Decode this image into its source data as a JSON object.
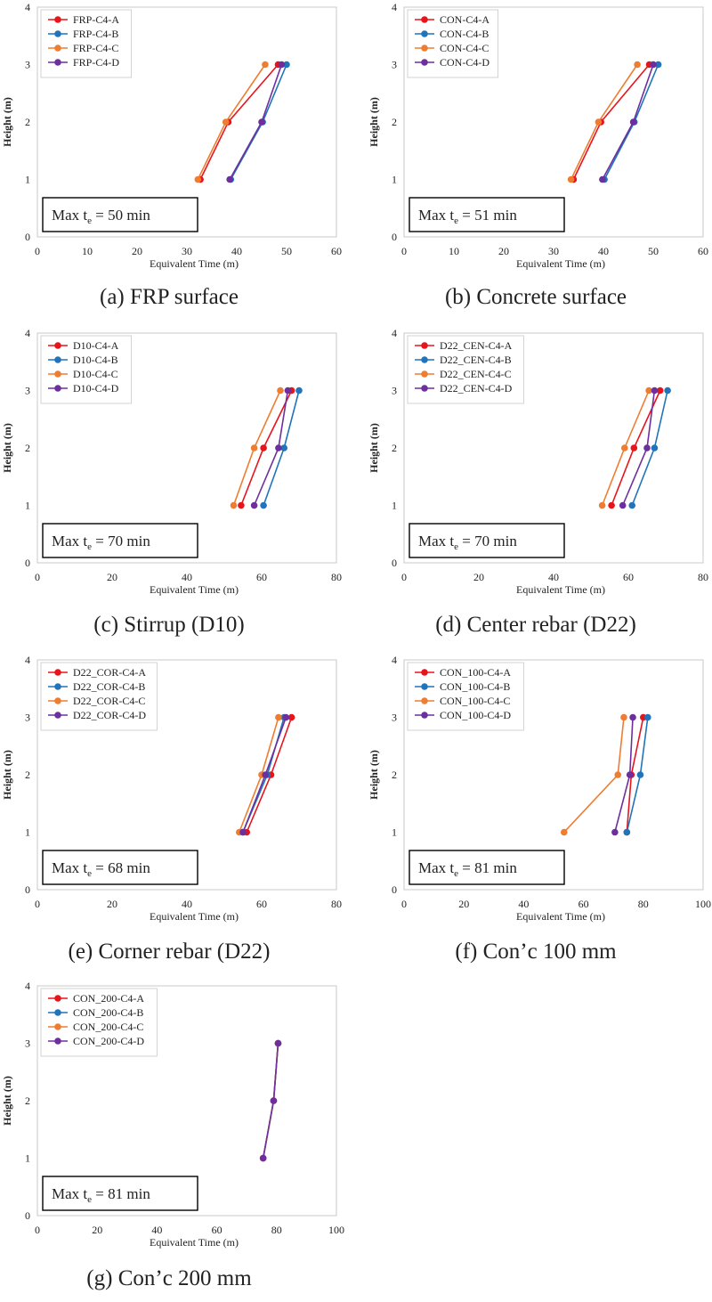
{
  "figure": {
    "series_colors": [
      "#e8141c",
      "#1f74bb",
      "#ee7d31",
      "#6e2f9e"
    ],
    "frame_color": "#c8c8c8"
  },
  "chart_data": [
    {
      "type": "line",
      "panel": "a",
      "caption": "(a) FRP surface",
      "xlabel": "Equivalent Time (m)",
      "ylabel": "Height (m)",
      "xlim": [
        0,
        60
      ],
      "xticks": [
        0,
        10,
        20,
        30,
        40,
        50,
        60
      ],
      "ylim": [
        0,
        4
      ],
      "yticks": [
        0,
        1,
        2,
        3,
        4
      ],
      "annotation": {
        "prefix": "Max t",
        "subscript": "e",
        "suffix": " = 50 min"
      },
      "legend_position": "top-left",
      "series": [
        {
          "name": "FRP-C4-A",
          "x": [
            32.7,
            38.3,
            48.3
          ],
          "y": [
            1,
            2,
            3
          ]
        },
        {
          "name": "FRP-C4-B",
          "x": [
            38.8,
            45.2,
            50.0
          ],
          "y": [
            1,
            2,
            3
          ]
        },
        {
          "name": "FRP-C4-C",
          "x": [
            32.2,
            37.8,
            45.7
          ],
          "y": [
            1,
            2,
            3
          ]
        },
        {
          "name": "FRP-C4-D",
          "x": [
            38.6,
            45.0,
            49.0
          ],
          "y": [
            1,
            2,
            3
          ]
        }
      ]
    },
    {
      "type": "line",
      "panel": "b",
      "caption": "(b) Concrete surface",
      "xlabel": "Equivalent Time (m)",
      "ylabel": "Height (m)",
      "xlim": [
        0,
        60
      ],
      "xticks": [
        0,
        10,
        20,
        30,
        40,
        50,
        60
      ],
      "ylim": [
        0,
        4
      ],
      "yticks": [
        0,
        1,
        2,
        3,
        4
      ],
      "annotation": {
        "prefix": "Max t",
        "subscript": "e",
        "suffix": " = 51 min"
      },
      "legend_position": "top-left",
      "series": [
        {
          "name": "CON-C4-A",
          "x": [
            34.0,
            39.5,
            49.2
          ],
          "y": [
            1,
            2,
            3
          ]
        },
        {
          "name": "CON-C4-B",
          "x": [
            40.2,
            46.2,
            51.0
          ],
          "y": [
            1,
            2,
            3
          ]
        },
        {
          "name": "CON-C4-C",
          "x": [
            33.5,
            39.0,
            46.8
          ],
          "y": [
            1,
            2,
            3
          ]
        },
        {
          "name": "CON-C4-D",
          "x": [
            39.8,
            46.0,
            50.0
          ],
          "y": [
            1,
            2,
            3
          ]
        }
      ]
    },
    {
      "type": "line",
      "panel": "c",
      "caption": "(c) Stirrup (D10)",
      "xlabel": "Equivalent Time (m)",
      "ylabel": "Height (m)",
      "xlim": [
        0,
        80
      ],
      "xticks": [
        0,
        20,
        40,
        60,
        80
      ],
      "ylim": [
        0,
        4
      ],
      "yticks": [
        0,
        1,
        2,
        3,
        4
      ],
      "annotation": {
        "prefix": "Max t",
        "subscript": "e",
        "suffix": " = 70 min"
      },
      "legend_position": "top-left",
      "series": [
        {
          "name": "D10-C4-A",
          "x": [
            54.5,
            60.5,
            68.0
          ],
          "y": [
            1,
            2,
            3
          ]
        },
        {
          "name": "D10-C4-B",
          "x": [
            60.5,
            66.0,
            70.0
          ],
          "y": [
            1,
            2,
            3
          ]
        },
        {
          "name": "D10-C4-C",
          "x": [
            52.5,
            58.0,
            65.0
          ],
          "y": [
            1,
            2,
            3
          ]
        },
        {
          "name": "D10-C4-D",
          "x": [
            58.0,
            64.5,
            67.0
          ],
          "y": [
            1,
            2,
            3
          ]
        }
      ]
    },
    {
      "type": "line",
      "panel": "d",
      "caption": "(d) Center rebar (D22)",
      "xlabel": "Equivalent Time (m)",
      "ylabel": "Height (m)",
      "xlim": [
        0,
        80
      ],
      "xticks": [
        0,
        20,
        40,
        60,
        80
      ],
      "ylim": [
        0,
        4
      ],
      "yticks": [
        0,
        1,
        2,
        3,
        4
      ],
      "annotation": {
        "prefix": "Max t",
        "subscript": "e",
        "suffix": " = 70 min"
      },
      "legend_position": "top-left",
      "series": [
        {
          "name": "D22_CEN-C4-A",
          "x": [
            55.5,
            61.5,
            68.5
          ],
          "y": [
            1,
            2,
            3
          ]
        },
        {
          "name": "D22_CEN-C4-B",
          "x": [
            61.0,
            67.0,
            70.5
          ],
          "y": [
            1,
            2,
            3
          ]
        },
        {
          "name": "D22_CEN-C4-C",
          "x": [
            53.0,
            59.0,
            65.5
          ],
          "y": [
            1,
            2,
            3
          ]
        },
        {
          "name": "D22_CEN-C4-D",
          "x": [
            58.5,
            65.0,
            67.0
          ],
          "y": [
            1,
            2,
            3
          ]
        }
      ]
    },
    {
      "type": "line",
      "panel": "e",
      "caption": "(e) Corner rebar (D22)",
      "xlabel": "Equivalent Time (m)",
      "ylabel": "Height (m)",
      "xlim": [
        0,
        80
      ],
      "xticks": [
        0,
        20,
        40,
        60,
        80
      ],
      "ylim": [
        0,
        4
      ],
      "yticks": [
        0,
        1,
        2,
        3,
        4
      ],
      "annotation": {
        "prefix": "Max t",
        "subscript": "e",
        "suffix": " = 68 min"
      },
      "legend_position": "top-left",
      "series": [
        {
          "name": "D22_COR-C4-A",
          "x": [
            56.0,
            62.5,
            68.0
          ],
          "y": [
            1,
            2,
            3
          ]
        },
        {
          "name": "D22_COR-C4-B",
          "x": [
            55.0,
            61.5,
            66.0
          ],
          "y": [
            1,
            2,
            3
          ]
        },
        {
          "name": "D22_COR-C4-C",
          "x": [
            54.0,
            60.0,
            64.5
          ],
          "y": [
            1,
            2,
            3
          ]
        },
        {
          "name": "D22_COR-C4-D",
          "x": [
            55.0,
            61.0,
            66.5
          ],
          "y": [
            1,
            2,
            3
          ]
        }
      ]
    },
    {
      "type": "line",
      "panel": "f",
      "caption": "(f) Con’c 100 mm",
      "xlabel": "Equivalent Time (m)",
      "ylabel": "Height (m)",
      "xlim": [
        0,
        100
      ],
      "xticks": [
        0,
        20,
        40,
        60,
        80,
        100
      ],
      "ylim": [
        0,
        4
      ],
      "yticks": [
        0,
        1,
        2,
        3,
        4
      ],
      "annotation": {
        "prefix": "Max t",
        "subscript": "e",
        "suffix": " = 81 min"
      },
      "legend_position": "top-left",
      "series": [
        {
          "name": "CON_100-C4-A",
          "x": [
            74.5,
            76.0,
            80.0
          ],
          "y": [
            1,
            2,
            3
          ]
        },
        {
          "name": "CON_100-C4-B",
          "x": [
            74.5,
            79.0,
            81.5
          ],
          "y": [
            1,
            2,
            3
          ]
        },
        {
          "name": "CON_100-C4-C",
          "x": [
            53.5,
            71.5,
            73.5
          ],
          "y": [
            1,
            2,
            3
          ]
        },
        {
          "name": "CON_100-C4-D",
          "x": [
            70.5,
            75.5,
            76.5
          ],
          "y": [
            1,
            2,
            3
          ]
        }
      ]
    },
    {
      "type": "line",
      "panel": "g",
      "caption": "(g) Con’c 200 mm",
      "xlabel": "Equivalent Time (m)",
      "ylabel": "Height (m)",
      "xlim": [
        0,
        100
      ],
      "xticks": [
        0,
        20,
        40,
        60,
        80,
        100
      ],
      "ylim": [
        0,
        4
      ],
      "yticks": [
        0,
        1,
        2,
        3,
        4
      ],
      "annotation": {
        "prefix": "Max t",
        "subscript": "e",
        "suffix": " = 81 min"
      },
      "legend_position": "top-left",
      "series": [
        {
          "name": "CON_200-C4-A",
          "x": [
            75.5,
            79.0,
            80.5
          ],
          "y": [
            1,
            2,
            3
          ]
        },
        {
          "name": "CON_200-C4-B",
          "x": [
            75.5,
            79.0,
            80.5
          ],
          "y": [
            1,
            2,
            3
          ]
        },
        {
          "name": "CON_200-C4-C",
          "x": [
            75.5,
            79.0,
            80.5
          ],
          "y": [
            1,
            2,
            3
          ]
        },
        {
          "name": "CON_200-C4-D",
          "x": [
            75.5,
            79.0,
            80.5
          ],
          "y": [
            1,
            2,
            3
          ]
        }
      ]
    }
  ]
}
